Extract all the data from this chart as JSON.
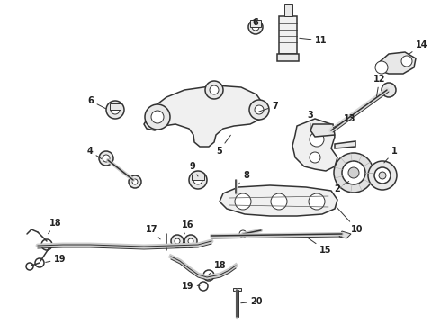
{
  "bg_color": "#ffffff",
  "line_color": "#333333",
  "text_color": "#222222",
  "figsize": [
    4.9,
    3.6
  ],
  "dpi": 100,
  "lw_main": 1.1,
  "lw_thin": 0.7,
  "label_fs": 7
}
